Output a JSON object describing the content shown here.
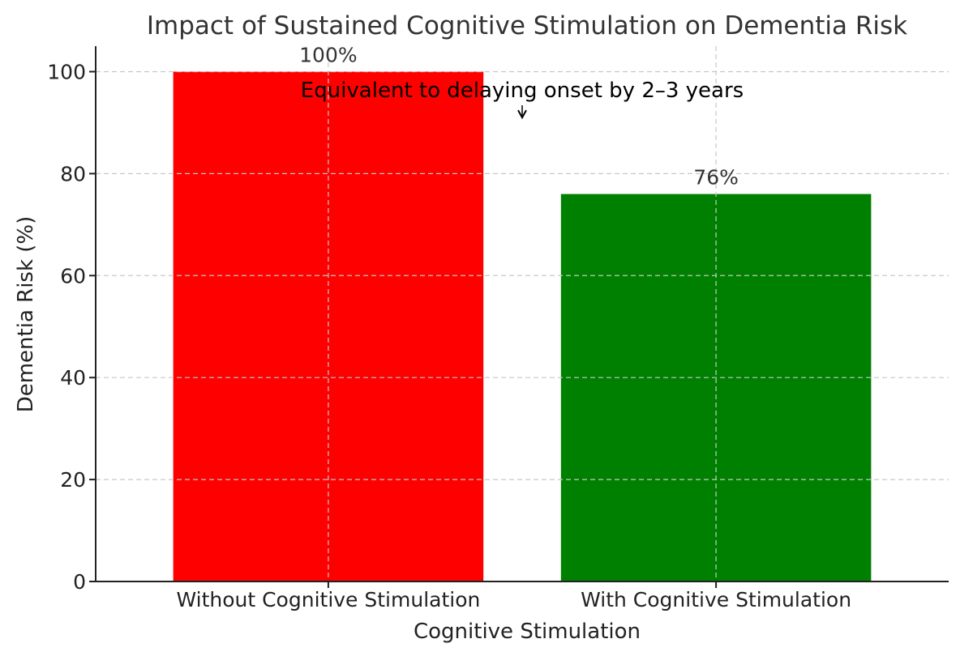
{
  "chart_data": {
    "type": "bar",
    "title": "Impact of Sustained Cognitive Stimulation on Dementia Risk",
    "xlabel": "Cognitive Stimulation",
    "ylabel": "Dementia Risk (%)",
    "categories": [
      "Without Cognitive Stimulation",
      "With Cognitive Stimulation"
    ],
    "values": [
      100,
      76
    ],
    "data_labels": [
      "100%",
      "76%"
    ],
    "colors": [
      "#ff0000",
      "#008000"
    ],
    "ylim": [
      0,
      105
    ],
    "yticks": [
      0,
      20,
      40,
      60,
      80,
      100
    ],
    "grid": true,
    "annotation": {
      "text": "Equivalent to delaying onset by 2–3 years",
      "arrow_target": {
        "x": 0.5,
        "y": 91
      }
    }
  }
}
